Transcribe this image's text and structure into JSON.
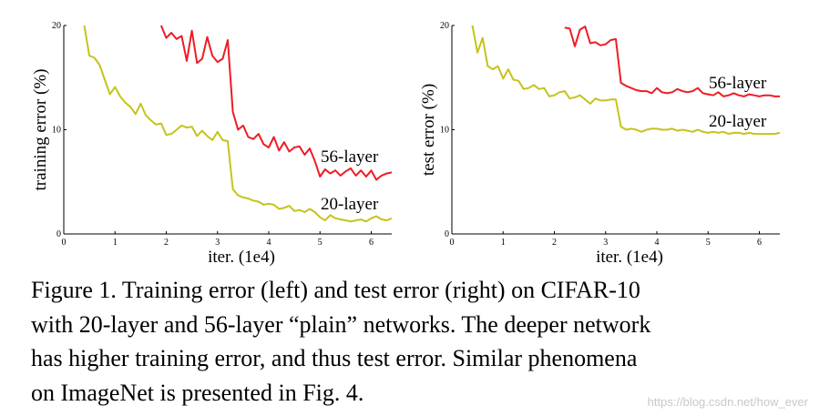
{
  "chart_data": [
    {
      "type": "line",
      "ylabel": "training error (%)",
      "xlabel": "iter. (1e4)",
      "xlim": [
        0,
        6.4
      ],
      "ylim": [
        0,
        20
      ],
      "xticks": [
        "0",
        "1",
        "2",
        "3",
        "4",
        "5",
        "6"
      ],
      "yticks": [
        "0",
        "10",
        "20"
      ],
      "grid": false,
      "series": [
        {
          "name": "56-layer",
          "color": "#ee1c25",
          "x": [
            1.9,
            2.0,
            2.1,
            2.2,
            2.3,
            2.4,
            2.5,
            2.6,
            2.7,
            2.8,
            2.9,
            3.0,
            3.1,
            3.2,
            3.3,
            3.4,
            3.5,
            3.6,
            3.7,
            3.8,
            3.9,
            4.0,
            4.1,
            4.2,
            4.3,
            4.4,
            4.5,
            4.6,
            4.7,
            4.8,
            4.9,
            5.0,
            5.1,
            5.2,
            5.3,
            5.4,
            5.5,
            5.6,
            5.7,
            5.8,
            5.9,
            6.0,
            6.1,
            6.2,
            6.3,
            6.4
          ],
          "values": [
            20.0,
            18.8,
            19.3,
            18.7,
            19.0,
            16.6,
            19.5,
            16.4,
            16.8,
            18.9,
            17.1,
            16.5,
            16.8,
            18.6,
            11.7,
            10.0,
            10.4,
            9.3,
            9.1,
            9.6,
            8.6,
            8.3,
            9.3,
            8.0,
            8.8,
            7.9,
            8.3,
            8.4,
            7.6,
            8.2,
            7.0,
            5.5,
            6.2,
            5.8,
            6.1,
            5.6,
            6.0,
            6.3,
            5.6,
            6.1,
            5.5,
            6.1,
            5.2,
            5.6,
            5.8,
            5.9
          ]
        },
        {
          "name": "20-layer",
          "color": "#c6c31c",
          "x": [
            0.4,
            0.5,
            0.6,
            0.7,
            0.8,
            0.9,
            1.0,
            1.1,
            1.2,
            1.3,
            1.4,
            1.5,
            1.6,
            1.7,
            1.8,
            1.9,
            2.0,
            2.1,
            2.2,
            2.3,
            2.4,
            2.5,
            2.6,
            2.7,
            2.8,
            2.9,
            3.0,
            3.1,
            3.2,
            3.3,
            3.4,
            3.5,
            3.6,
            3.7,
            3.8,
            3.9,
            4.0,
            4.1,
            4.2,
            4.3,
            4.4,
            4.5,
            4.6,
            4.7,
            4.8,
            4.9,
            5.0,
            5.1,
            5.2,
            5.3,
            5.4,
            5.5,
            5.6,
            5.7,
            5.8,
            5.9,
            6.0,
            6.1,
            6.2,
            6.3,
            6.4
          ],
          "values": [
            20.0,
            17.1,
            16.9,
            16.2,
            14.8,
            13.4,
            14.1,
            13.2,
            12.6,
            12.2,
            11.5,
            12.5,
            11.4,
            10.9,
            10.5,
            10.6,
            9.5,
            9.6,
            10.0,
            10.4,
            10.2,
            10.3,
            9.4,
            9.9,
            9.4,
            9.0,
            9.8,
            9.0,
            8.9,
            4.3,
            3.7,
            3.5,
            3.4,
            3.2,
            3.1,
            2.8,
            2.9,
            2.8,
            2.4,
            2.5,
            2.7,
            2.2,
            2.3,
            2.1,
            2.4,
            2.1,
            1.6,
            1.3,
            1.8,
            1.5,
            1.4,
            1.3,
            1.2,
            1.3,
            1.4,
            1.2,
            1.5,
            1.7,
            1.4,
            1.3,
            1.5
          ]
        }
      ]
    },
    {
      "type": "line",
      "ylabel": "test error (%)",
      "xlabel": "iter. (1e4)",
      "xlim": [
        0,
        6.4
      ],
      "ylim": [
        0,
        20
      ],
      "xticks": [
        "0",
        "1",
        "2",
        "3",
        "4",
        "5",
        "6"
      ],
      "yticks": [
        "0",
        "10",
        "20"
      ],
      "grid": false,
      "series": [
        {
          "name": "56-layer",
          "color": "#ee1c25",
          "x": [
            2.2,
            2.3,
            2.4,
            2.5,
            2.6,
            2.7,
            2.8,
            2.9,
            3.0,
            3.1,
            3.2,
            3.3,
            3.4,
            3.5,
            3.6,
            3.7,
            3.8,
            3.9,
            4.0,
            4.1,
            4.2,
            4.3,
            4.4,
            4.5,
            4.6,
            4.7,
            4.8,
            4.9,
            5.0,
            5.1,
            5.2,
            5.3,
            5.4,
            5.5,
            5.6,
            5.7,
            5.8,
            5.9,
            6.0,
            6.1,
            6.2,
            6.3,
            6.4
          ],
          "values": [
            19.8,
            19.7,
            18.0,
            19.6,
            19.9,
            18.3,
            18.4,
            18.1,
            18.2,
            18.6,
            18.7,
            14.5,
            14.2,
            14.0,
            13.8,
            13.7,
            13.7,
            13.5,
            14.0,
            13.6,
            13.5,
            13.6,
            13.9,
            13.7,
            13.6,
            13.7,
            14.0,
            13.5,
            13.4,
            13.3,
            13.6,
            13.2,
            13.3,
            13.5,
            13.3,
            13.2,
            13.4,
            13.3,
            13.2,
            13.3,
            13.3,
            13.2,
            13.2
          ]
        },
        {
          "name": "20-layer",
          "color": "#c6c31c",
          "x": [
            0.4,
            0.5,
            0.6,
            0.7,
            0.8,
            0.9,
            1.0,
            1.1,
            1.2,
            1.3,
            1.4,
            1.5,
            1.6,
            1.7,
            1.8,
            1.9,
            2.0,
            2.1,
            2.2,
            2.3,
            2.4,
            2.5,
            2.6,
            2.7,
            2.8,
            2.9,
            3.0,
            3.1,
            3.2,
            3.3,
            3.4,
            3.5,
            3.6,
            3.7,
            3.8,
            3.9,
            4.0,
            4.1,
            4.2,
            4.3,
            4.4,
            4.5,
            4.6,
            4.7,
            4.8,
            4.9,
            5.0,
            5.1,
            5.2,
            5.3,
            5.4,
            5.5,
            5.6,
            5.7,
            5.8,
            5.9,
            6.0,
            6.1,
            6.2,
            6.3,
            6.4
          ],
          "values": [
            20.0,
            17.4,
            18.8,
            16.1,
            15.8,
            16.1,
            14.9,
            15.8,
            14.8,
            14.7,
            13.9,
            14.0,
            14.3,
            13.9,
            14.0,
            13.2,
            13.3,
            13.6,
            13.7,
            13.0,
            13.1,
            13.3,
            12.9,
            12.5,
            13.0,
            12.8,
            12.8,
            12.9,
            12.9,
            10.3,
            10.0,
            10.1,
            10.0,
            9.8,
            10.0,
            10.1,
            10.1,
            10.0,
            10.0,
            10.1,
            9.9,
            10.0,
            9.9,
            9.8,
            10.0,
            9.8,
            9.7,
            9.8,
            9.7,
            9.8,
            9.6,
            9.7,
            9.7,
            9.6,
            9.7,
            9.6,
            9.6,
            9.6,
            9.6,
            9.6,
            9.7
          ]
        }
      ]
    }
  ],
  "caption": {
    "line1": "Figure 1. Training error (left) and test error (right) on CIFAR-10",
    "line2": "with 20-layer and 56-layer “plain” networks. The deeper network",
    "line3": "has higher training error, and thus test error.  Similar phenomena",
    "line4": "on ImageNet is presented in Fig. 4."
  },
  "watermark": "https://blog.csdn.net/how_ever"
}
